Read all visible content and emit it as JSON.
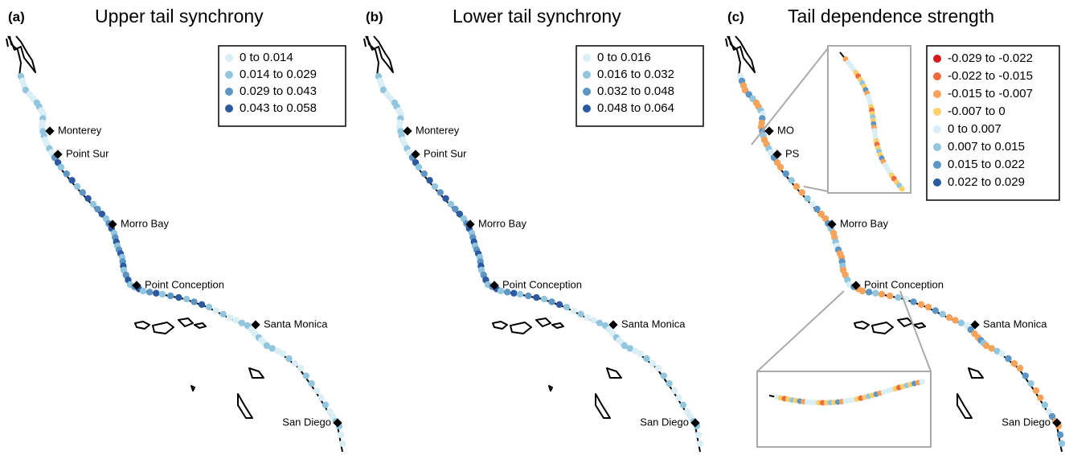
{
  "panels": [
    {
      "label": "(a)",
      "title": "Upper tail synchrony",
      "legend": [
        {
          "label": "0 to 0.014",
          "color": "#d9eef5"
        },
        {
          "label": "0.014 to 0.029",
          "color": "#92c5de"
        },
        {
          "label": "0.029 to 0.043",
          "color": "#5d95c4"
        },
        {
          "label": "0.043 to 0.058",
          "color": "#2c5aa0"
        }
      ],
      "places": [
        {
          "name": "Monterey"
        },
        {
          "name": "Point Sur"
        },
        {
          "name": "Morro Bay"
        },
        {
          "name": "Point Conception"
        },
        {
          "name": "Santa Monica"
        },
        {
          "name": "San Diego"
        }
      ]
    },
    {
      "label": "(b)",
      "title": "Lower tail synchrony",
      "legend": [
        {
          "label": "0 to 0.016",
          "color": "#d9eef5"
        },
        {
          "label": "0.016 to 0.032",
          "color": "#92c5de"
        },
        {
          "label": "0.032 to 0.048",
          "color": "#5d95c4"
        },
        {
          "label": "0.048 to 0.064",
          "color": "#2c5aa0"
        }
      ],
      "places": [
        {
          "name": "Monterey"
        },
        {
          "name": "Point Sur"
        },
        {
          "name": "Morro Bay"
        },
        {
          "name": "Point Conception"
        },
        {
          "name": "Santa Monica"
        },
        {
          "name": "San Diego"
        }
      ]
    },
    {
      "label": "(c)",
      "title": "Tail dependence strength",
      "legend": [
        {
          "label": "-0.029 to -0.022",
          "color": "#d7191c"
        },
        {
          "label": "-0.022 to -0.015",
          "color": "#ef6b3a"
        },
        {
          "label": "-0.015 to -0.007",
          "color": "#f5a35a"
        },
        {
          "label": "-0.007 to 0",
          "color": "#fdd06b"
        },
        {
          "label": "0 to 0.007",
          "color": "#d9eef5"
        },
        {
          "label": "0.007 to 0.015",
          "color": "#92c5de"
        },
        {
          "label": "0.015 to 0.022",
          "color": "#5d95c4"
        },
        {
          "label": "0.022 to 0.029",
          "color": "#2c5aa0"
        }
      ],
      "places": [
        {
          "name": "MO"
        },
        {
          "name": "PS"
        },
        {
          "name": "Morro Bay"
        },
        {
          "name": "Point Conception"
        },
        {
          "name": "Santa Monica"
        },
        {
          "name": "San Diego"
        }
      ]
    }
  ]
}
